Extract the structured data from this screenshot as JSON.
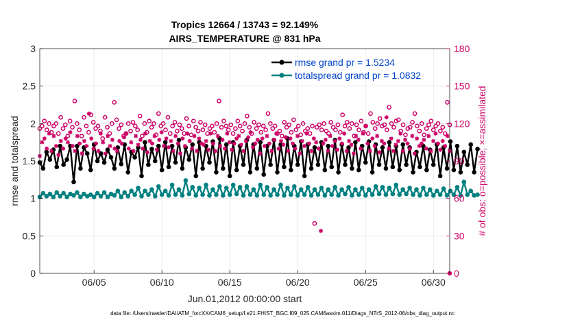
{
  "chart_data": {
    "type": "line",
    "title_line1": "Tropics 12664 / 13743 = 92.149%",
    "title_line2": "AIRS_TEMPERATURE @ 831 hPa",
    "xlabel": "Jun.01,2012 00:00:00 start",
    "ylabel_left": "rmse and totalspread",
    "ylabel_right": "# of obs: o=possible; ×=assimilated",
    "xlim": [
      1,
      31.2
    ],
    "ylim_left": [
      0,
      3
    ],
    "ylim_right": [
      0,
      180
    ],
    "x_ticks": [
      5,
      10,
      15,
      20,
      25,
      30
    ],
    "x_tick_labels": [
      "06/05",
      "06/10",
      "06/15",
      "06/20",
      "06/25",
      "06/30"
    ],
    "y_ticks_left": [
      "0",
      "0.5",
      "1",
      "1.5",
      "2",
      "2.5",
      "3"
    ],
    "y_ticks_right": [
      "0",
      "30",
      "60",
      "90",
      "120",
      "150",
      "180"
    ],
    "legend": [
      {
        "label": "rmse grand pr = 1.5234",
        "color": "#000000"
      },
      {
        "label": "totalspread grand pr = 1.0832",
        "color": "#008080"
      }
    ],
    "x_start": 1.0,
    "x_step": 0.25,
    "series": [
      {
        "name": "rmse",
        "axis": "left",
        "color": "#000000",
        "values": [
          1.48,
          1.4,
          1.62,
          1.52,
          1.65,
          1.42,
          1.7,
          1.45,
          1.52,
          1.7,
          1.22,
          1.7,
          1.4,
          1.68,
          1.6,
          1.38,
          1.72,
          1.5,
          1.6,
          1.48,
          1.65,
          1.55,
          1.4,
          1.68,
          1.46,
          1.72,
          1.35,
          1.62,
          1.55,
          1.68,
          1.3,
          1.75,
          1.45,
          1.66,
          1.5,
          1.7,
          1.38,
          1.75,
          1.42,
          1.7,
          1.48,
          1.78,
          1.4,
          1.68,
          1.52,
          1.72,
          1.3,
          1.75,
          1.4,
          1.7,
          1.48,
          1.76,
          1.35,
          1.8,
          1.4,
          1.72,
          1.3,
          1.75,
          1.38,
          1.7,
          1.45,
          1.78,
          1.35,
          1.72,
          1.4,
          1.75,
          1.32,
          1.7,
          1.45,
          1.78,
          1.35,
          1.72,
          1.42,
          1.8,
          1.38,
          1.7,
          1.45,
          1.76,
          1.3,
          1.72,
          1.4,
          1.68,
          1.45,
          1.75,
          1.38,
          1.7,
          1.42,
          1.78,
          1.35,
          1.72,
          1.45,
          1.68,
          1.4,
          1.75,
          1.38,
          1.7,
          1.48,
          1.76,
          1.35,
          1.72,
          1.45,
          1.68,
          1.4,
          1.75,
          1.42,
          1.7,
          1.38,
          1.72,
          1.45,
          1.68,
          1.35,
          1.62,
          1.42,
          1.7,
          1.38,
          1.65,
          1.45,
          1.72,
          1.3,
          1.68,
          1.4,
          1.76,
          1.38,
          1.7,
          1.35,
          1.62,
          1.45,
          1.72,
          1.35,
          1.66
        ]
      },
      {
        "name": "totalspread",
        "axis": "left",
        "color": "#008080",
        "values": [
          1.02,
          1.07,
          1.03,
          1.06,
          1.02,
          1.08,
          1.03,
          1.07,
          1.02,
          1.06,
          1.04,
          1.08,
          1.02,
          1.06,
          1.03,
          1.05,
          1.02,
          1.07,
          1.03,
          1.08,
          1.02,
          1.06,
          1.04,
          1.1,
          1.02,
          1.08,
          1.03,
          1.1,
          1.05,
          1.14,
          1.03,
          1.1,
          1.05,
          1.12,
          1.03,
          1.16,
          1.05,
          1.1,
          1.04,
          1.18,
          1.05,
          1.12,
          1.04,
          1.24,
          1.06,
          1.15,
          1.04,
          1.14,
          1.05,
          1.18,
          1.04,
          1.12,
          1.05,
          1.16,
          1.04,
          1.14,
          1.05,
          1.18,
          1.06,
          1.15,
          1.04,
          1.16,
          1.05,
          1.12,
          1.04,
          1.18,
          1.05,
          1.15,
          1.04,
          1.12,
          1.05,
          1.18,
          1.04,
          1.14,
          1.05,
          1.16,
          1.04,
          1.12,
          1.05,
          1.15,
          1.04,
          1.12,
          1.05,
          1.14,
          1.04,
          1.12,
          1.05,
          1.15,
          1.04,
          1.12,
          1.06,
          1.15,
          1.04,
          1.12,
          1.05,
          1.14,
          1.04,
          1.12,
          1.05,
          1.16,
          1.06,
          1.15,
          1.05,
          1.14,
          1.06,
          1.18,
          1.05,
          1.12,
          1.06,
          1.14,
          1.05,
          1.12,
          1.04,
          1.14,
          1.05,
          1.12,
          1.04,
          1.1,
          1.05,
          1.13,
          1.04,
          1.1,
          1.05,
          1.15,
          1.04,
          1.22,
          1.05,
          1.1,
          1.04,
          1.05
        ]
      },
      {
        "name": "obs possible",
        "axis": "right",
        "marker": "o",
        "color": "#cc0066",
        "values": [
          116,
          118,
          122,
          115,
          120,
          113,
          118,
          120,
          112,
          125,
          116,
          119,
          110,
          122,
          117,
          138,
          120,
          115,
          110,
          125,
          118,
          113,
          127,
          121,
          116,
          118,
          114,
          108,
          125,
          117,
          112,
          120,
          137,
          123,
          116,
          119,
          110,
          112,
          120,
          114,
          121,
          118,
          115,
          126,
          110,
          120,
          113,
          122,
          117,
          120,
          111,
          128,
          118,
          120,
          115,
          125,
          112,
          118,
          121,
          114,
          119,
          116,
          112,
          124,
          118,
          111,
          122,
          117,
          114,
          121,
          115,
          119,
          112,
          116,
          118,
          113,
          120,
          138,
          117,
          122,
          118,
          115,
          119,
          112,
          116,
          122,
          118,
          114,
          120,
          126,
          117,
          112,
          121,
          116,
          119,
          113,
          118,
          115,
          128,
          120,
          116,
          118,
          112,
          114,
          110,
          121,
          117,
          119,
          113,
          123,
          115,
          118,
          111,
          120,
          114,
          116,
          112,
          118,
          40,
          117,
          119,
          115,
          120,
          114,
          112,
          121,
          117,
          115,
          119,
          113,
          127,
          118,
          121,
          116,
          120,
          110,
          119,
          115,
          122,
          113,
          118,
          112,
          128,
          121,
          116,
          120,
          124,
          118,
          119,
          115,
          133,
          120,
          117,
          122,
          123,
          114,
          119,
          111,
          116,
          117,
          121,
          128,
          118,
          114,
          120,
          111,
          116,
          119,
          122,
          115,
          118,
          120,
          114,
          117,
          112,
          137,
          119
        ]
      },
      {
        "name": "obs assimilated",
        "axis": "right",
        "marker": "x",
        "color": "#cc0066",
        "values": [
          94,
          105,
          108,
          100,
          112,
          98,
          110,
          102,
          95,
          106,
          100,
          108,
          105,
          113,
          102,
          98,
          110,
          104,
          96,
          106,
          102,
          128,
          108,
          100,
          104,
          98,
          112,
          105,
          96,
          110,
          102,
          107,
          100,
          98,
          106,
          104,
          109,
          112,
          100,
          105,
          98,
          110,
          103,
          107,
          100,
          112,
          97,
          106,
          104,
          110,
          99,
          107,
          113,
          102,
          108,
          101,
          106,
          98,
          110,
          104,
          96,
          108,
          102,
          112,
          106,
          100,
          110,
          98,
          108,
          104,
          103,
          106,
          99,
          112,
          104,
          98,
          110,
          102,
          107,
          100,
          112,
          105,
          99,
          104,
          108,
          110,
          103,
          98,
          106,
          109,
          113,
          101,
          104,
          107,
          96,
          108,
          102,
          110,
          104,
          98,
          107,
          112,
          100,
          106,
          103,
          109,
          98,
          108,
          104,
          100,
          110,
          96,
          106,
          102,
          112,
          104,
          98,
          108,
          105,
          100,
          34,
          104,
          107,
          98,
          110,
          102,
          106,
          99,
          108,
          104,
          112,
          98,
          106,
          103,
          96,
          110,
          107,
          100,
          112,
          118,
          104,
          98,
          108,
          102,
          110,
          97,
          106,
          104,
          125,
          100,
          108,
          98,
          103,
          106,
          112,
          98,
          107,
          104,
          100,
          110,
          96,
          108,
          102,
          104,
          107,
          100,
          110,
          98,
          106,
          112,
          104,
          99,
          106,
          102,
          110,
          98
        ]
      }
    ]
  },
  "footer_text": "data file: /Users/raeder/DAI/ATM_forcXX/CAM6_setup/f.e21.FHIST_BGC.f09_025.CAM6assim.011/Diags_NTrS_2012-06/obs_diag_output.nc"
}
